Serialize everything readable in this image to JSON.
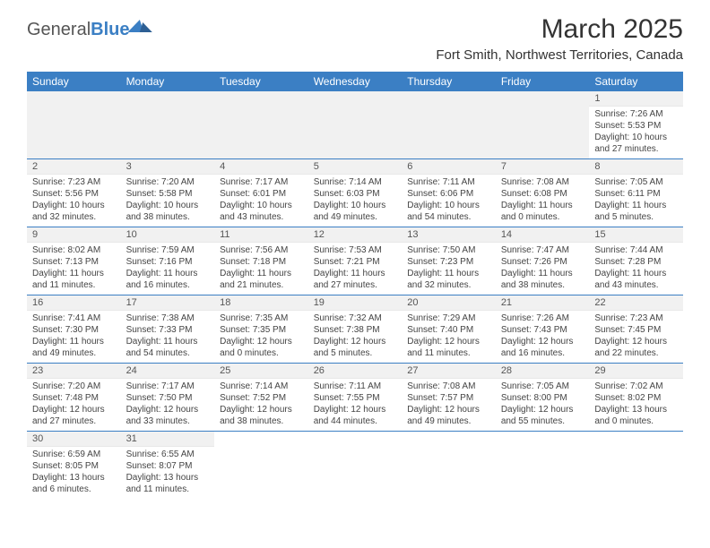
{
  "brand": {
    "part1": "General",
    "part2": "Blue"
  },
  "title": "March 2025",
  "location": "Fort Smith, Northwest Territories, Canada",
  "columns": [
    "Sunday",
    "Monday",
    "Tuesday",
    "Wednesday",
    "Thursday",
    "Friday",
    "Saturday"
  ],
  "header_bg": "#3b7fc4",
  "daynum_bg": "#f1f1f1",
  "row_border": "#3b7fc4",
  "weeks": [
    [
      null,
      null,
      null,
      null,
      null,
      null,
      {
        "n": "1",
        "sunrise": "7:26 AM",
        "sunset": "5:53 PM",
        "day_h": 10,
        "day_m": 27
      }
    ],
    [
      {
        "n": "2",
        "sunrise": "7:23 AM",
        "sunset": "5:56 PM",
        "day_h": 10,
        "day_m": 32
      },
      {
        "n": "3",
        "sunrise": "7:20 AM",
        "sunset": "5:58 PM",
        "day_h": 10,
        "day_m": 38
      },
      {
        "n": "4",
        "sunrise": "7:17 AM",
        "sunset": "6:01 PM",
        "day_h": 10,
        "day_m": 43
      },
      {
        "n": "5",
        "sunrise": "7:14 AM",
        "sunset": "6:03 PM",
        "day_h": 10,
        "day_m": 49
      },
      {
        "n": "6",
        "sunrise": "7:11 AM",
        "sunset": "6:06 PM",
        "day_h": 10,
        "day_m": 54
      },
      {
        "n": "7",
        "sunrise": "7:08 AM",
        "sunset": "6:08 PM",
        "day_h": 11,
        "day_m": 0
      },
      {
        "n": "8",
        "sunrise": "7:05 AM",
        "sunset": "6:11 PM",
        "day_h": 11,
        "day_m": 5
      }
    ],
    [
      {
        "n": "9",
        "sunrise": "8:02 AM",
        "sunset": "7:13 PM",
        "day_h": 11,
        "day_m": 11
      },
      {
        "n": "10",
        "sunrise": "7:59 AM",
        "sunset": "7:16 PM",
        "day_h": 11,
        "day_m": 16
      },
      {
        "n": "11",
        "sunrise": "7:56 AM",
        "sunset": "7:18 PM",
        "day_h": 11,
        "day_m": 21
      },
      {
        "n": "12",
        "sunrise": "7:53 AM",
        "sunset": "7:21 PM",
        "day_h": 11,
        "day_m": 27
      },
      {
        "n": "13",
        "sunrise": "7:50 AM",
        "sunset": "7:23 PM",
        "day_h": 11,
        "day_m": 32
      },
      {
        "n": "14",
        "sunrise": "7:47 AM",
        "sunset": "7:26 PM",
        "day_h": 11,
        "day_m": 38
      },
      {
        "n": "15",
        "sunrise": "7:44 AM",
        "sunset": "7:28 PM",
        "day_h": 11,
        "day_m": 43
      }
    ],
    [
      {
        "n": "16",
        "sunrise": "7:41 AM",
        "sunset": "7:30 PM",
        "day_h": 11,
        "day_m": 49
      },
      {
        "n": "17",
        "sunrise": "7:38 AM",
        "sunset": "7:33 PM",
        "day_h": 11,
        "day_m": 54
      },
      {
        "n": "18",
        "sunrise": "7:35 AM",
        "sunset": "7:35 PM",
        "day_h": 12,
        "day_m": 0
      },
      {
        "n": "19",
        "sunrise": "7:32 AM",
        "sunset": "7:38 PM",
        "day_h": 12,
        "day_m": 5
      },
      {
        "n": "20",
        "sunrise": "7:29 AM",
        "sunset": "7:40 PM",
        "day_h": 12,
        "day_m": 11
      },
      {
        "n": "21",
        "sunrise": "7:26 AM",
        "sunset": "7:43 PM",
        "day_h": 12,
        "day_m": 16
      },
      {
        "n": "22",
        "sunrise": "7:23 AM",
        "sunset": "7:45 PM",
        "day_h": 12,
        "day_m": 22
      }
    ],
    [
      {
        "n": "23",
        "sunrise": "7:20 AM",
        "sunset": "7:48 PM",
        "day_h": 12,
        "day_m": 27
      },
      {
        "n": "24",
        "sunrise": "7:17 AM",
        "sunset": "7:50 PM",
        "day_h": 12,
        "day_m": 33
      },
      {
        "n": "25",
        "sunrise": "7:14 AM",
        "sunset": "7:52 PM",
        "day_h": 12,
        "day_m": 38
      },
      {
        "n": "26",
        "sunrise": "7:11 AM",
        "sunset": "7:55 PM",
        "day_h": 12,
        "day_m": 44
      },
      {
        "n": "27",
        "sunrise": "7:08 AM",
        "sunset": "7:57 PM",
        "day_h": 12,
        "day_m": 49
      },
      {
        "n": "28",
        "sunrise": "7:05 AM",
        "sunset": "8:00 PM",
        "day_h": 12,
        "day_m": 55
      },
      {
        "n": "29",
        "sunrise": "7:02 AM",
        "sunset": "8:02 PM",
        "day_h": 13,
        "day_m": 0
      }
    ],
    [
      {
        "n": "30",
        "sunrise": "6:59 AM",
        "sunset": "8:05 PM",
        "day_h": 13,
        "day_m": 6
      },
      {
        "n": "31",
        "sunrise": "6:55 AM",
        "sunset": "8:07 PM",
        "day_h": 13,
        "day_m": 11
      },
      null,
      null,
      null,
      null,
      null
    ]
  ],
  "labels": {
    "sunrise": "Sunrise:",
    "sunset": "Sunset:",
    "daylight": "Daylight:",
    "hours": "hours",
    "and": "and",
    "minutes": "minutes."
  }
}
